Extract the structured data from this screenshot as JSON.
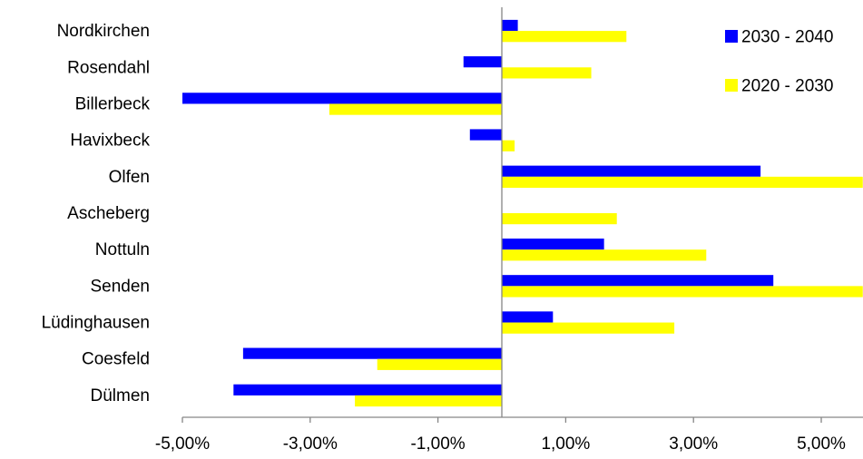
{
  "chart_data": {
    "type": "bar",
    "orientation": "horizontal",
    "categories": [
      "Nordkirchen",
      "Rosendahl",
      "Billerbeck",
      "Havixbeck",
      "Olfen",
      "Ascheberg",
      "Nottuln",
      "Senden",
      "Lüdinghausen",
      "Coesfeld",
      "Dülmen"
    ],
    "series": [
      {
        "name": "2030 - 2040",
        "color": "#0000FF",
        "values": [
          0.25,
          -0.6,
          -5.0,
          -0.5,
          4.05,
          0.0,
          1.6,
          4.25,
          0.8,
          -4.05,
          -4.2
        ]
      },
      {
        "name": "2020 - 2030",
        "color": "#FFFF00",
        "values": [
          1.95,
          1.4,
          -2.7,
          0.2,
          5.65,
          1.8,
          3.2,
          5.65,
          2.7,
          -1.95,
          -2.3
        ]
      }
    ],
    "xlim": [
      -5.0,
      5.65
    ],
    "x_ticks": [
      -5,
      -3,
      -1,
      1,
      3,
      5
    ],
    "x_tick_labels": [
      "-5,00%",
      "-3,00%",
      "-1,00%",
      "1,00%",
      "3,00%",
      "5,00%"
    ],
    "legend_position": "top-right",
    "grid": false
  }
}
